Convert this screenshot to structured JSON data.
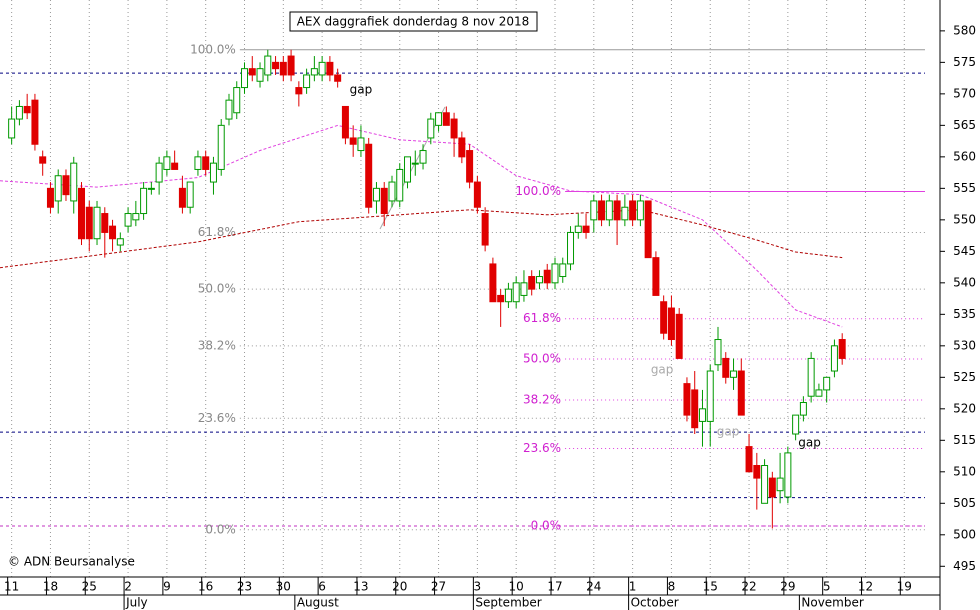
{
  "chart_data": {
    "type": "candlestick",
    "title": "AEX daggrafiek donderdag 8 nov 2018",
    "copyright": "© ADN Beursanalyse",
    "xlim": [
      -1.5,
      119.6
    ],
    "ylim": [
      493.3,
      584.9
    ],
    "yticks": [
      495,
      500,
      505,
      510,
      515,
      520,
      525,
      530,
      535,
      540,
      545,
      550,
      555,
      560,
      565,
      570,
      575,
      580
    ],
    "xticks": [
      {
        "value": 0,
        "label": "11"
      },
      {
        "value": 5,
        "label": "18"
      },
      {
        "value": 10,
        "label": "25"
      },
      {
        "value": 15,
        "label": "2"
      },
      {
        "value": 20,
        "label": "9"
      },
      {
        "value": 25,
        "label": "16"
      },
      {
        "value": 30,
        "label": "23"
      },
      {
        "value": 35,
        "label": "30"
      },
      {
        "value": 40,
        "label": "6"
      },
      {
        "value": 45,
        "label": "13"
      },
      {
        "value": 50,
        "label": "20"
      },
      {
        "value": 55,
        "label": "27"
      },
      {
        "value": 60,
        "label": "3"
      },
      {
        "value": 65,
        "label": "10"
      },
      {
        "value": 70,
        "label": "17"
      },
      {
        "value": 75,
        "label": "24"
      },
      {
        "value": 80,
        "label": "1"
      },
      {
        "value": 85,
        "label": "8"
      },
      {
        "value": 90,
        "label": "15"
      },
      {
        "value": 95,
        "label": "22"
      },
      {
        "value": 100,
        "label": "29"
      },
      {
        "value": 105,
        "label": "5"
      },
      {
        "value": 110,
        "label": "12"
      },
      {
        "value": 115,
        "label": "19"
      }
    ],
    "month_labels": [
      {
        "value": 15,
        "label": "July"
      },
      {
        "value": 37,
        "label": "August"
      },
      {
        "value": 60,
        "label": "September"
      },
      {
        "value": 80,
        "label": "October"
      },
      {
        "value": 102,
        "label": "November"
      }
    ],
    "grid": true,
    "up_color": "#009900",
    "down_color": "#e00000",
    "ohlc": {
      "x": [
        0,
        1,
        2,
        3,
        4,
        5,
        6,
        7,
        8,
        9,
        10,
        11,
        12,
        13,
        14,
        15,
        16,
        17,
        18,
        19,
        20,
        21,
        22,
        23,
        24,
        25,
        26,
        27,
        28,
        29,
        30,
        31,
        32,
        33,
        34,
        35,
        36,
        37,
        38,
        39,
        40,
        41,
        42,
        43,
        44,
        45,
        46,
        47,
        48,
        49,
        50,
        51,
        52,
        53,
        54,
        55,
        56,
        57,
        58,
        59,
        60,
        61,
        62,
        63,
        64,
        65,
        66,
        67,
        68,
        69,
        70,
        71,
        72,
        73,
        74,
        75,
        76,
        77,
        78,
        79,
        80,
        81,
        82,
        83,
        84,
        85,
        86,
        87,
        88,
        89,
        90,
        91,
        92,
        93,
        94,
        95,
        96,
        97,
        98,
        99,
        100,
        101,
        102,
        103,
        104,
        105,
        106,
        107
      ],
      "open": [
        563,
        566,
        568,
        569,
        560,
        555,
        553,
        557,
        553,
        555,
        552,
        547,
        551,
        549,
        546,
        549,
        550,
        551,
        555,
        556,
        558,
        559,
        555,
        552,
        558,
        560,
        556,
        558,
        566,
        567,
        571,
        574,
        572,
        573,
        575,
        575,
        576,
        571,
        571,
        573,
        573,
        575,
        573,
        568,
        563,
        561,
        562,
        553,
        555,
        553,
        553,
        556,
        559,
        559,
        563,
        565,
        567,
        566,
        563,
        561,
        556,
        551,
        543,
        538,
        537,
        537,
        538,
        541,
        540,
        542,
        540,
        541,
        543,
        548,
        549,
        550,
        553,
        550,
        553,
        550,
        553,
        550,
        553,
        544,
        537,
        536,
        535,
        524,
        523,
        518,
        518,
        527,
        528,
        525,
        526,
        514,
        511,
        505,
        509,
        507,
        506,
        516,
        519,
        522,
        522,
        523,
        526,
        531
      ],
      "high": [
        568,
        569,
        570,
        570,
        561,
        556,
        558,
        558,
        560,
        556,
        553,
        553,
        552,
        550,
        548,
        552,
        553,
        556,
        556,
        560,
        561,
        561,
        557,
        556,
        561,
        561,
        560,
        566,
        570,
        572,
        575,
        576,
        575,
        577,
        576,
        576,
        577,
        572,
        574,
        576,
        576,
        576,
        574,
        568,
        565,
        565,
        563,
        556,
        556,
        557,
        559,
        560,
        561,
        562,
        567,
        567,
        568,
        567,
        564,
        562,
        557,
        552,
        544,
        539,
        540,
        541,
        542,
        542,
        542,
        543,
        544,
        544,
        549,
        551,
        551,
        554,
        554,
        554,
        554,
        554,
        554,
        554,
        553,
        545,
        538,
        538,
        536,
        525,
        526,
        523,
        527,
        533,
        529,
        528,
        528,
        516,
        513,
        512,
        510,
        513,
        514,
        519,
        522,
        529,
        524,
        525,
        531,
        532
      ],
      "low": [
        562,
        565,
        566,
        561,
        557,
        551,
        551,
        553,
        551,
        546,
        545,
        546,
        544,
        545,
        545,
        548,
        549,
        550,
        554,
        554,
        557,
        558,
        551,
        551,
        557,
        557,
        554,
        557,
        565,
        566,
        570,
        572,
        571,
        572,
        573,
        572,
        572,
        568,
        570,
        572,
        572,
        572,
        571,
        562,
        560,
        560,
        551,
        551,
        549,
        552,
        552,
        555,
        557,
        558,
        562,
        564,
        565,
        560,
        559,
        555,
        551,
        545,
        537,
        533,
        536,
        536,
        537,
        538,
        539,
        539,
        539,
        540,
        542,
        547,
        547,
        548,
        549,
        549,
        546,
        549,
        549,
        549,
        544,
        538,
        531,
        530,
        528,
        518,
        516,
        514,
        514,
        526,
        524,
        523,
        519,
        510,
        504,
        505,
        501,
        505,
        505,
        515,
        518,
        521,
        522,
        521,
        525,
        527
      ],
      "close": [
        566,
        568,
        567,
        562,
        559,
        552,
        557,
        554,
        559,
        547,
        547,
        552,
        548,
        547,
        547,
        551,
        551,
        555,
        555,
        559,
        560,
        558,
        552,
        556,
        560,
        558,
        559,
        565,
        569,
        571,
        574,
        573,
        574,
        576,
        574,
        573,
        573,
        570,
        573,
        574,
        575,
        573,
        572,
        563,
        562,
        563,
        552,
        555,
        551,
        556,
        558,
        560,
        559,
        561,
        566,
        567,
        565,
        563,
        560,
        556,
        552,
        546,
        537,
        537,
        539,
        540,
        540,
        539,
        541,
        540,
        543,
        543,
        548,
        549,
        548,
        553,
        550,
        553,
        550,
        552,
        550,
        553,
        544,
        538,
        532,
        531,
        528,
        519,
        517,
        520,
        526,
        531,
        525,
        526,
        519,
        510,
        509,
        511,
        506,
        509,
        513,
        519,
        521,
        528,
        523,
        525,
        530,
        528
      ]
    },
    "moving_averages": [
      {
        "color": "#e040e0",
        "x": [
          -1.5,
          11,
          24,
          32,
          42,
          50,
          59,
          65,
          72,
          81,
          89,
          96,
          101,
          107
        ],
        "values": [
          556.2,
          555.2,
          556.7,
          561,
          565,
          562.7,
          562,
          557,
          554.6,
          554,
          550,
          542,
          535.7,
          533
        ]
      },
      {
        "color": "#b00000",
        "x": [
          -1.5,
          11,
          24,
          37,
          50,
          59,
          69,
          81,
          89,
          96,
          101,
          107
        ],
        "values": [
          542.4,
          544.4,
          546.5,
          549.7,
          550.8,
          551.6,
          550.8,
          551.6,
          549.2,
          546.8,
          544.9,
          544
        ]
      }
    ],
    "horizontal_lines": [
      {
        "value": 573.3,
        "color": "#000080"
      },
      {
        "value": 516.3,
        "color": "#000080"
      },
      {
        "value": 505.9,
        "color": "#000080"
      },
      {
        "value": 501.4,
        "color": "#c030c0"
      }
    ],
    "fibonacci": [
      {
        "color": "#999999",
        "label_color": "#888888",
        "x_start": 29.4,
        "levels": [
          {
            "value": 577,
            "label": "100.0%"
          },
          {
            "value": 548,
            "label": "61.8%"
          },
          {
            "value": 539,
            "label": "50.0%"
          },
          {
            "value": 530,
            "label": "38.2%"
          },
          {
            "value": 518.5,
            "label": "23.6%"
          },
          {
            "value": 500.8,
            "label": "0.0%"
          }
        ]
      },
      {
        "color": "#e040e0",
        "label_color": "#d020d0",
        "x_start": 71.3,
        "levels": [
          {
            "value": 554.5,
            "label": "100.0%"
          },
          {
            "value": 534.3,
            "label": "61.8%"
          },
          {
            "value": 527.9,
            "label": "50.0%"
          },
          {
            "value": 521.4,
            "label": "38.2%"
          },
          {
            "value": 513.7,
            "label": "23.6%"
          },
          {
            "value": 501.4,
            "label": "0.0%"
          }
        ]
      }
    ],
    "annotations": [
      {
        "text": "gap",
        "x": 45,
        "y": 570.6,
        "color": "#000000"
      },
      {
        "text": "gap",
        "x": 83.8,
        "y": 526.2,
        "color": "#aaaaaa"
      },
      {
        "text": "gap",
        "x": 92.3,
        "y": 516.3,
        "color": "#aaaaaa"
      },
      {
        "text": "gap",
        "x": 102.8,
        "y": 514.6,
        "color": "#000000"
      }
    ]
  }
}
